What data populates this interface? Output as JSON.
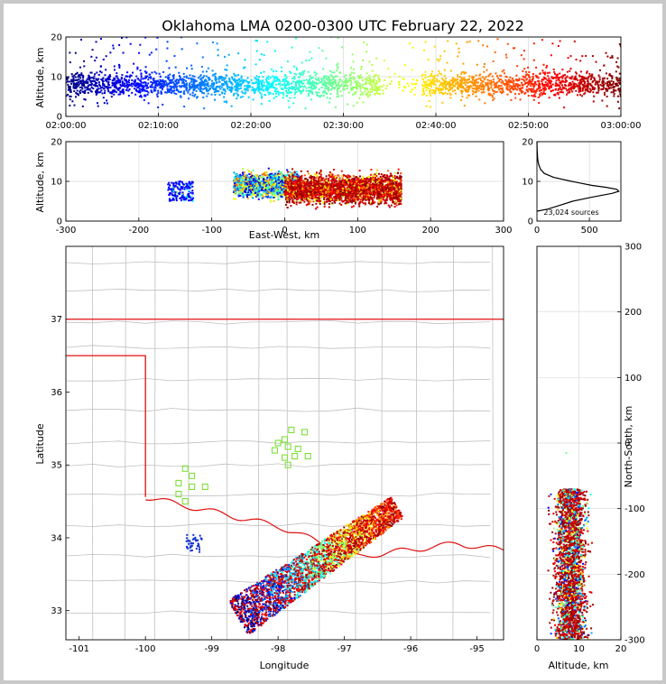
{
  "title": "Oklahoma LMA 0200-0300 UTC February 22, 2022",
  "colors": {
    "grid": "#d9d9d9",
    "county": "#c0c0c0",
    "state_border": "#e01010",
    "axis": "#000000"
  },
  "chart_data": [
    {
      "type": "scatter",
      "panel": "altitude-time",
      "ylabel": "Altitude, km",
      "xlabel": "",
      "xlim": [
        "02:00:00",
        "03:00:00"
      ],
      "ylim": [
        0,
        20
      ],
      "xticks": [
        "02:00:00",
        "02:10:00",
        "02:20:00",
        "02:30:00",
        "02:40:00",
        "02:50:00",
        "03:00:00"
      ],
      "yticks": [
        0,
        10,
        20
      ],
      "colormap": "jet (time)",
      "gaps": [
        [
          "02:34:00",
          "02:38:30"
        ]
      ],
      "altitude_core_km": [
        3,
        14
      ]
    },
    {
      "type": "scatter",
      "panel": "altitude-eastwest",
      "ylabel": "Altitude, km",
      "xlabel": "East-West, km",
      "xlim": [
        -300,
        300
      ],
      "ylim": [
        0,
        20
      ],
      "xticks": [
        -300,
        -200,
        -100,
        0,
        100,
        200,
        300
      ],
      "yticks": [
        0,
        10,
        20
      ],
      "clusters": [
        {
          "x_range": [
            -160,
            -125
          ],
          "z_range": [
            5,
            10
          ],
          "color": "#0000ff"
        },
        {
          "x_range": [
            -70,
            20
          ],
          "z_range": [
            4,
            14
          ],
          "color": "mixed"
        },
        {
          "x_range": [
            0,
            160
          ],
          "z_range": [
            3,
            18
          ],
          "color": "#b00000"
        }
      ]
    },
    {
      "type": "line",
      "panel": "altitude-histogram",
      "xlim": [
        0,
        800
      ],
      "ylim": [
        0,
        20
      ],
      "xticks": [
        0,
        500
      ],
      "yticks": [
        0,
        10,
        20
      ],
      "annotation": "23,024 sources",
      "altitude_km": [
        2.5,
        3,
        4,
        5,
        6,
        7,
        7.5,
        8,
        8.5,
        9,
        10,
        11,
        12,
        13,
        14,
        15,
        16,
        17,
        18,
        19,
        20
      ],
      "count": [
        0,
        100,
        220,
        340,
        520,
        720,
        780,
        760,
        660,
        520,
        330,
        160,
        70,
        35,
        20,
        10,
        6,
        4,
        2,
        1,
        0
      ]
    },
    {
      "type": "scatter",
      "panel": "plan-view",
      "xlabel": "Longitude",
      "ylabel": "Latitude",
      "xlim": [
        -101.2,
        -94.6
      ],
      "ylim": [
        32.6,
        38
      ],
      "xticks": [
        -101,
        -100,
        -99,
        -98,
        -97,
        -96,
        -95
      ],
      "yticks": [
        33,
        34,
        35,
        36,
        37
      ],
      "stations": [
        [
          -97.8,
          35.48
        ],
        [
          -97.6,
          35.45
        ],
        [
          -97.9,
          35.35
        ],
        [
          -98.0,
          35.3
        ],
        [
          -97.85,
          35.25
        ],
        [
          -97.7,
          35.22
        ],
        [
          -98.05,
          35.2
        ],
        [
          -97.75,
          35.12
        ],
        [
          -97.55,
          35.12
        ],
        [
          -97.9,
          35.1
        ],
        [
          -97.85,
          35.0
        ],
        [
          -99.4,
          34.95
        ],
        [
          -99.3,
          34.85
        ],
        [
          -99.5,
          34.75
        ],
        [
          -99.3,
          34.7
        ],
        [
          -99.1,
          34.7
        ],
        [
          -99.5,
          34.6
        ],
        [
          -99.4,
          34.5
        ]
      ],
      "storm_line": {
        "start": [
          -98.6,
          32.9
        ],
        "end": [
          -96.2,
          34.42
        ],
        "half_width_deg": 0.28
      }
    },
    {
      "type": "scatter",
      "panel": "northsouth-altitude",
      "xlabel": "Altitude, km",
      "ylabel": "North-South, km",
      "xlim": [
        0,
        20
      ],
      "ylim": [
        -300,
        300
      ],
      "xticks": [
        0,
        10,
        20
      ],
      "yticks": [
        -300,
        -200,
        -100,
        0,
        100,
        200,
        300
      ],
      "ns_range_km": [
        -300,
        -70
      ],
      "altitude_core_km": [
        3,
        14
      ]
    }
  ]
}
